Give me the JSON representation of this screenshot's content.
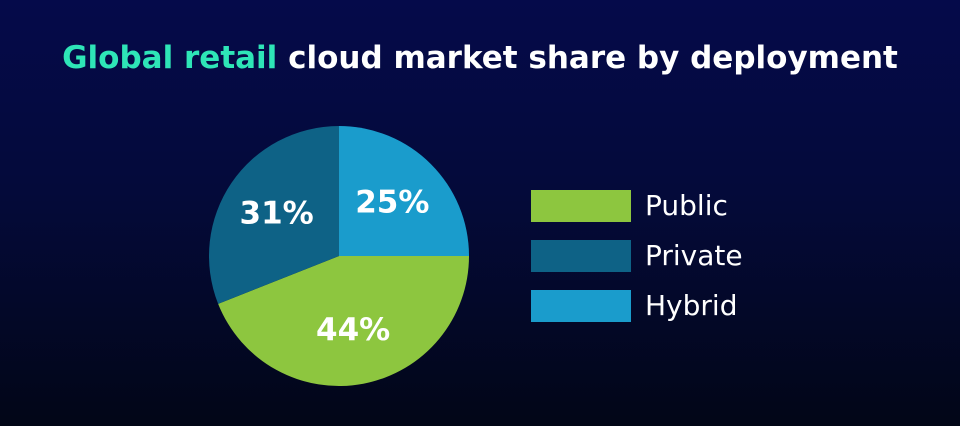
{
  "title": {
    "highlight": "Global retail",
    "rest": " cloud market share by deployment"
  },
  "chart_data": {
    "type": "pie",
    "title": "Global retail cloud market share by deployment",
    "slices": [
      {
        "name": "Public",
        "value": 44,
        "label": "44%",
        "color": "#8dc63f"
      },
      {
        "name": "Private",
        "value": 31,
        "label": "31%",
        "color": "#0e6286"
      },
      {
        "name": "Hybrid",
        "value": 25,
        "label": "25%",
        "color": "#1a9ccc"
      }
    ],
    "legend_position": "right"
  },
  "colors": {
    "background": "#050a4a",
    "title_highlight": "#2ee5b7"
  }
}
